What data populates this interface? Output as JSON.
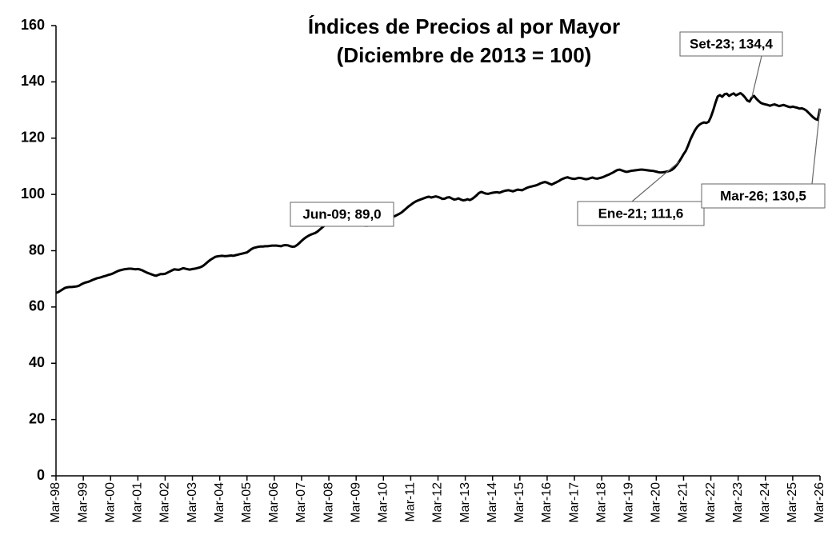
{
  "chart_data": {
    "type": "line",
    "title": "Índices de Precios al por Mayor",
    "subtitle": "(Diciembre de 2013 = 100)",
    "categories": [
      "Mar-98",
      null,
      null,
      null,
      null,
      null,
      null,
      null,
      null,
      null,
      null,
      null,
      "Mar-99",
      null,
      null,
      null,
      null,
      null,
      null,
      null,
      null,
      null,
      null,
      null,
      "Mar-00",
      null,
      null,
      null,
      null,
      null,
      null,
      null,
      null,
      null,
      null,
      null,
      "Mar-01",
      null,
      null,
      null,
      null,
      null,
      null,
      null,
      null,
      null,
      null,
      null,
      "Mar-02",
      null,
      null,
      null,
      null,
      null,
      null,
      null,
      null,
      null,
      null,
      null,
      "Mar-03",
      null,
      null,
      null,
      null,
      null,
      null,
      null,
      null,
      null,
      null,
      null,
      "Mar-04",
      null,
      null,
      null,
      null,
      null,
      null,
      null,
      null,
      null,
      null,
      null,
      "Mar-05",
      null,
      null,
      null,
      null,
      null,
      null,
      null,
      null,
      null,
      null,
      null,
      "Mar-06",
      null,
      null,
      null,
      null,
      null,
      null,
      null,
      null,
      null,
      null,
      null,
      "Mar-07",
      null,
      null,
      null,
      null,
      null,
      null,
      null,
      null,
      null,
      null,
      null,
      "Mar-08",
      null,
      null,
      null,
      null,
      null,
      null,
      null,
      null,
      null,
      null,
      null,
      "Mar-09",
      null,
      null,
      null,
      null,
      null,
      null,
      null,
      null,
      null,
      null,
      null,
      "Mar-10",
      null,
      null,
      null,
      null,
      null,
      null,
      null,
      null,
      null,
      null,
      null,
      "Mar-11",
      null,
      null,
      null,
      null,
      null,
      null,
      null,
      null,
      null,
      null,
      null,
      "Mar-12",
      null,
      null,
      null,
      null,
      null,
      null,
      null,
      null,
      null,
      null,
      null,
      "Mar-13",
      null,
      null,
      null,
      null,
      null,
      null,
      null,
      null,
      null,
      null,
      null,
      "Mar-14",
      null,
      null,
      null,
      null,
      null,
      null,
      null,
      null,
      null,
      null,
      null,
      "Mar-15",
      null,
      null,
      null,
      null,
      null,
      null,
      null,
      null,
      null,
      null,
      null,
      "Mar-16",
      null,
      null,
      null,
      null,
      null,
      null,
      null,
      null,
      null,
      null,
      null,
      "Mar-17",
      null,
      null,
      null,
      null,
      null,
      null,
      null,
      null,
      null,
      null,
      null,
      "Mar-18",
      null,
      null,
      null,
      null,
      null,
      null,
      null,
      null,
      null,
      null,
      null,
      "Mar-19",
      null,
      null,
      null,
      null,
      null,
      null,
      null,
      null,
      null,
      null,
      null,
      "Mar-20",
      null,
      null,
      null,
      null,
      null,
      null,
      null,
      null,
      null,
      null,
      null,
      "Mar-21",
      null,
      null,
      null,
      null,
      null,
      null,
      null,
      null,
      null,
      null,
      null,
      "Mar-22",
      null,
      null,
      null,
      null,
      null,
      null,
      null,
      null,
      null,
      null,
      null,
      "Mar-23",
      null,
      null,
      null,
      null,
      null,
      null,
      null,
      null,
      null,
      null,
      null,
      "Mar-24",
      null,
      null,
      null,
      null,
      null,
      null,
      null,
      null,
      null,
      null,
      null,
      "Mar-25",
      null,
      null,
      null,
      null,
      null,
      null,
      null,
      null,
      null,
      null,
      null,
      "Mar-26"
    ],
    "series": [
      {
        "color": "#000000",
        "values": [
          65.0,
          65.3,
          65.8,
          66.3,
          66.8,
          67.0,
          67.1,
          67.1,
          67.2,
          67.3,
          67.5,
          68.0,
          68.4,
          68.7,
          68.9,
          69.2,
          69.6,
          69.9,
          70.2,
          70.4,
          70.6,
          70.9,
          71.1,
          71.4,
          71.6,
          71.9,
          72.3,
          72.7,
          73.0,
          73.2,
          73.4,
          73.5,
          73.6,
          73.6,
          73.5,
          73.4,
          73.5,
          73.3,
          73.0,
          72.6,
          72.2,
          71.9,
          71.6,
          71.3,
          71.1,
          71.4,
          71.7,
          71.7,
          71.8,
          72.2,
          72.6,
          73.0,
          73.4,
          73.3,
          73.2,
          73.5,
          73.8,
          73.6,
          73.4,
          73.3,
          73.5,
          73.6,
          73.8,
          74.0,
          74.3,
          74.8,
          75.5,
          76.2,
          76.8,
          77.3,
          77.8,
          78.0,
          78.1,
          78.2,
          78.1,
          78.1,
          78.2,
          78.3,
          78.2,
          78.4,
          78.6,
          78.8,
          79.0,
          79.2,
          79.4,
          80.0,
          80.6,
          81.0,
          81.2,
          81.4,
          81.5,
          81.5,
          81.6,
          81.6,
          81.7,
          81.8,
          81.8,
          81.8,
          81.7,
          81.6,
          81.9,
          82.0,
          81.9,
          81.6,
          81.4,
          81.5,
          82.0,
          82.7,
          83.5,
          84.2,
          84.8,
          85.3,
          85.7,
          86.0,
          86.3,
          86.8,
          87.5,
          88.2,
          88.9,
          89.6,
          90.5,
          91.5,
          92.7,
          93.8,
          94.6,
          94.8,
          94.5,
          93.7,
          92.6,
          91.4,
          90.4,
          89.9,
          89.6,
          89.3,
          89.1,
          89.0,
          88.9,
          88.9,
          89.1,
          89.5,
          89.9,
          90.2,
          90.5,
          90.8,
          91.1,
          91.3,
          91.6,
          91.8,
          92.0,
          92.3,
          92.7,
          93.1,
          93.6,
          94.3,
          95.0,
          95.7,
          96.3,
          96.9,
          97.4,
          97.8,
          98.1,
          98.4,
          98.7,
          99.0,
          99.2,
          98.9,
          99.1,
          99.3,
          99.1,
          98.8,
          98.4,
          98.5,
          98.9,
          99.0,
          98.6,
          98.2,
          98.3,
          98.6,
          98.2,
          97.9,
          98.0,
          98.3,
          98.0,
          98.4,
          99.0,
          99.7,
          100.5,
          100.9,
          100.6,
          100.3,
          100.2,
          100.4,
          100.6,
          100.7,
          100.8,
          100.6,
          100.9,
          101.2,
          101.4,
          101.5,
          101.3,
          101.1,
          101.4,
          101.7,
          101.6,
          101.5,
          101.9,
          102.3,
          102.6,
          102.8,
          103.0,
          103.2,
          103.5,
          103.9,
          104.2,
          104.4,
          104.2,
          103.8,
          103.5,
          103.9,
          104.3,
          104.7,
          105.2,
          105.6,
          105.9,
          106.1,
          105.8,
          105.6,
          105.5,
          105.7,
          105.9,
          105.8,
          105.6,
          105.4,
          105.5,
          105.8,
          106.0,
          105.7,
          105.6,
          105.8,
          106.0,
          106.3,
          106.7,
          107.0,
          107.4,
          107.8,
          108.3,
          108.7,
          108.8,
          108.5,
          108.2,
          108.0,
          108.2,
          108.4,
          108.5,
          108.6,
          108.7,
          108.8,
          108.8,
          108.7,
          108.6,
          108.5,
          108.4,
          108.3,
          108.1,
          107.9,
          107.8,
          107.9,
          108.0,
          108.2,
          108.4,
          108.8,
          109.5,
          110.5,
          111.6,
          112.9,
          114.3,
          115.5,
          117.4,
          119.5,
          121.2,
          122.8,
          124.0,
          124.8,
          125.3,
          125.6,
          125.4,
          125.8,
          127.5,
          129.8,
          132.5,
          134.8,
          135.3,
          134.7,
          135.6,
          135.8,
          135.0,
          135.5,
          135.9,
          135.2,
          135.6,
          136.0,
          135.4,
          134.5,
          133.4,
          133.0,
          134.4,
          135.0,
          134.0,
          133.2,
          132.5,
          132.2,
          132.0,
          131.8,
          131.5,
          131.8,
          132.0,
          131.7,
          131.4,
          131.6,
          131.8,
          131.5,
          131.2,
          131.0,
          131.2,
          131.0,
          130.8,
          130.5,
          130.6,
          130.3,
          129.8,
          129.0,
          128.2,
          127.4,
          126.8,
          126.5,
          130.5
        ]
      }
    ],
    "annotations": [
      "Jun-09; 89,0",
      "Set-23; 134,4",
      "Ene-21; 111,6",
      "Mar-26; 130,5"
    ],
    "ylim": [
      0,
      160
    ],
    "yticks": [
      0,
      20,
      40,
      60,
      80,
      100,
      120,
      140,
      160
    ],
    "grid": false
  }
}
